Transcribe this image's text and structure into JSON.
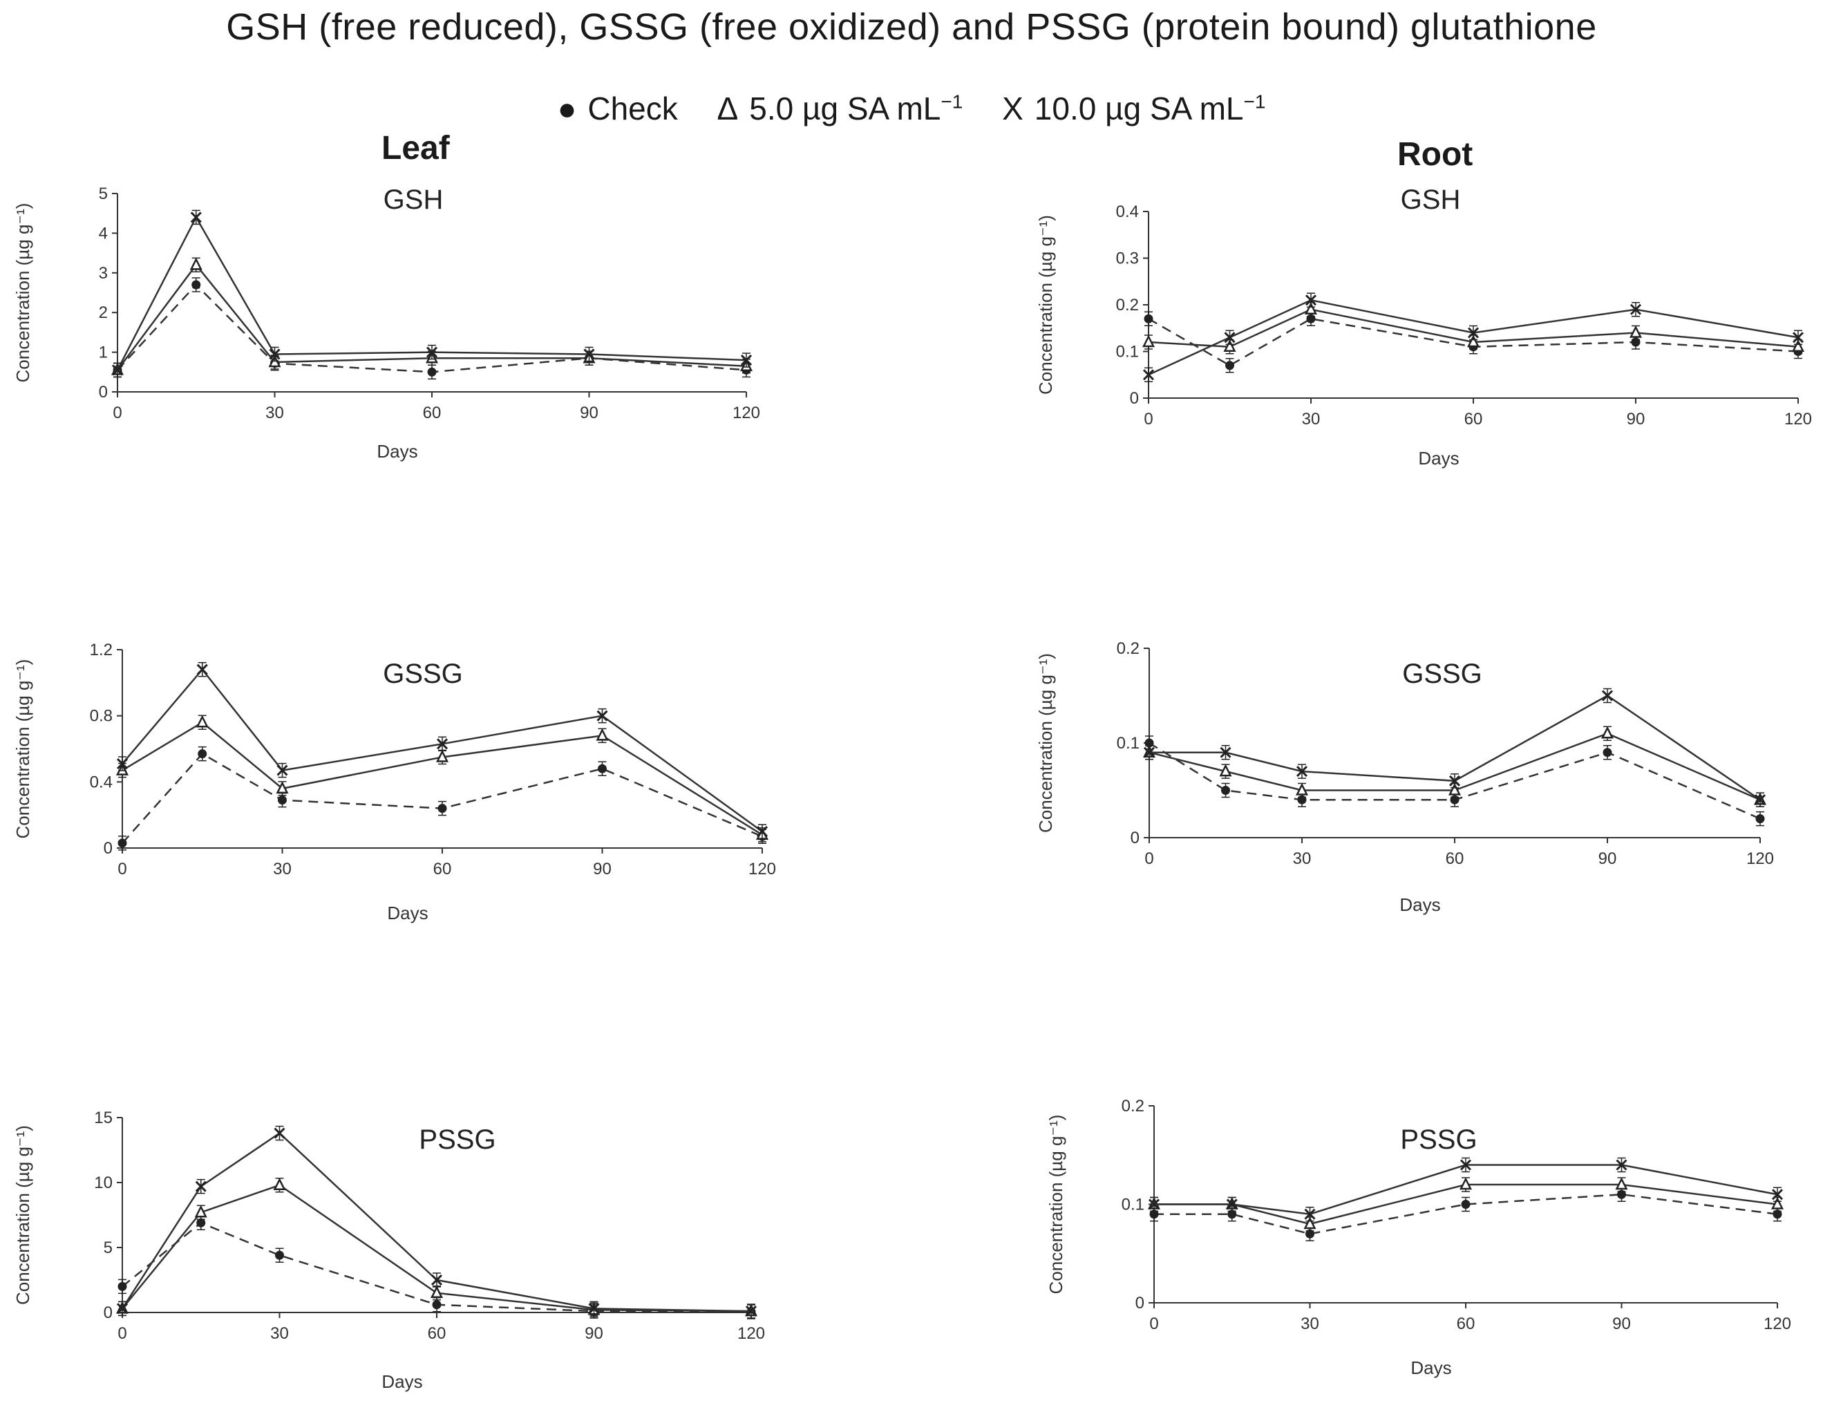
{
  "figure": {
    "title": "GSH (free reduced), GSSG (free oxidized) and PSSG (protein bound) glutathione",
    "legend": [
      {
        "symbol": "●",
        "label": "Check",
        "unit_sup": ""
      },
      {
        "symbol": "Δ",
        "label": "5.0 µg SA mL",
        "unit_sup": "−1"
      },
      {
        "symbol": "X",
        "label": "10.0 µg SA mL",
        "unit_sup": "−1"
      }
    ],
    "columns": {
      "leaf": "Leaf",
      "root": "Root"
    }
  },
  "colors": {
    "axis": "#333333",
    "line": "#333333",
    "marker": "#222222"
  },
  "chart_data": [
    {
      "type": "line",
      "id": "leaf-gsh",
      "title": "GSH",
      "xlabel": "Days",
      "ylabel": "Concentration (µg g⁻¹)",
      "xticks": [
        0,
        30,
        60,
        90,
        120
      ],
      "xlim": [
        0,
        120
      ],
      "yticks": [
        0,
        1,
        2,
        3,
        4,
        5
      ],
      "ytick_labels": [
        "0",
        "1",
        "2",
        "3",
        "4",
        "5"
      ],
      "ylim": [
        0,
        5
      ],
      "x": [
        0,
        15,
        30,
        60,
        90,
        120
      ],
      "series": [
        {
          "name": "Check",
          "marker": "circle",
          "dash": true,
          "values": [
            0.55,
            2.7,
            0.72,
            0.5,
            0.85,
            0.55
          ]
        },
        {
          "name": "5.0 µg SA mL⁻¹",
          "marker": "triangle",
          "dash": false,
          "values": [
            0.55,
            3.2,
            0.75,
            0.85,
            0.85,
            0.65
          ]
        },
        {
          "name": "10.0 µg SA mL⁻¹",
          "marker": "x",
          "dash": false,
          "values": [
            0.55,
            4.4,
            0.95,
            1.0,
            0.95,
            0.8
          ]
        }
      ]
    },
    {
      "type": "line",
      "id": "root-gsh",
      "title": "GSH",
      "xlabel": "Days",
      "ylabel": "Concentration (µg g⁻¹)",
      "xticks": [
        0,
        30,
        60,
        90,
        120
      ],
      "xlim": [
        0,
        120
      ],
      "yticks": [
        0,
        0.1,
        0.2,
        0.3,
        0.4
      ],
      "ytick_labels": [
        "0",
        "0.1",
        "0.2",
        "0.3",
        "0.4"
      ],
      "ylim": [
        0,
        0.4
      ],
      "x": [
        0,
        15,
        30,
        60,
        90,
        120
      ],
      "series": [
        {
          "name": "Check",
          "marker": "circle",
          "dash": true,
          "values": [
            0.17,
            0.07,
            0.17,
            0.11,
            0.12,
            0.1
          ]
        },
        {
          "name": "5.0 µg SA mL⁻¹",
          "marker": "triangle",
          "dash": false,
          "values": [
            0.12,
            0.11,
            0.19,
            0.12,
            0.14,
            0.11
          ]
        },
        {
          "name": "10.0 µg SA mL⁻¹",
          "marker": "x",
          "dash": false,
          "values": [
            0.05,
            0.13,
            0.21,
            0.14,
            0.19,
            0.13
          ]
        }
      ]
    },
    {
      "type": "line",
      "id": "leaf-gssg",
      "title": "GSSG",
      "xlabel": "Days",
      "ylabel": "Concentration (µg g⁻¹)",
      "xticks": [
        0,
        30,
        60,
        90,
        120
      ],
      "xlim": [
        0,
        120
      ],
      "yticks": [
        0,
        0.4,
        0.8,
        1.2
      ],
      "ytick_labels": [
        "0",
        "0.4",
        "0.8",
        "1.2"
      ],
      "ylim": [
        0,
        1.2
      ],
      "x": [
        0,
        15,
        30,
        60,
        90,
        120
      ],
      "series": [
        {
          "name": "Check",
          "marker": "circle",
          "dash": true,
          "values": [
            0.03,
            0.57,
            0.29,
            0.24,
            0.48,
            0.07
          ]
        },
        {
          "name": "5.0 µg SA mL⁻¹",
          "marker": "triangle",
          "dash": false,
          "values": [
            0.47,
            0.76,
            0.36,
            0.55,
            0.68,
            0.08
          ]
        },
        {
          "name": "10.0 µg SA mL⁻¹",
          "marker": "x",
          "dash": false,
          "values": [
            0.51,
            1.08,
            0.47,
            0.63,
            0.8,
            0.1
          ]
        }
      ]
    },
    {
      "type": "line",
      "id": "root-gssg",
      "title": "GSSG",
      "xlabel": "Days",
      "ylabel": "Concentration (µg g⁻¹)",
      "xticks": [
        0,
        30,
        60,
        90,
        120
      ],
      "xlim": [
        0,
        120
      ],
      "yticks": [
        0,
        0.1,
        0.2
      ],
      "ytick_labels": [
        "0",
        "0.1",
        "0.2"
      ],
      "ylim": [
        0,
        0.2
      ],
      "x": [
        0,
        15,
        30,
        60,
        90,
        120
      ],
      "series": [
        {
          "name": "Check",
          "marker": "circle",
          "dash": true,
          "values": [
            0.1,
            0.05,
            0.04,
            0.04,
            0.09,
            0.02
          ]
        },
        {
          "name": "5.0 µg SA mL⁻¹",
          "marker": "triangle",
          "dash": false,
          "values": [
            0.09,
            0.07,
            0.05,
            0.05,
            0.11,
            0.04
          ]
        },
        {
          "name": "10.0 µg SA mL⁻¹",
          "marker": "x",
          "dash": false,
          "values": [
            0.09,
            0.09,
            0.07,
            0.06,
            0.15,
            0.04
          ]
        }
      ]
    },
    {
      "type": "line",
      "id": "leaf-pssg",
      "title": "PSSG",
      "xlabel": "Days",
      "ylabel": "Concentration (µg g⁻¹)",
      "xticks": [
        0,
        30,
        60,
        90,
        120
      ],
      "xlim": [
        0,
        120
      ],
      "yticks": [
        0,
        5,
        10,
        15
      ],
      "ytick_labels": [
        "0",
        "5",
        "10",
        "15"
      ],
      "ylim": [
        0,
        15
      ],
      "x": [
        0,
        15,
        30,
        60,
        90,
        120
      ],
      "series": [
        {
          "name": "Check",
          "marker": "circle",
          "dash": true,
          "values": [
            2.0,
            6.9,
            4.4,
            0.6,
            0.1,
            0.05
          ]
        },
        {
          "name": "5.0 µg SA mL⁻¹",
          "marker": "triangle",
          "dash": false,
          "values": [
            0.3,
            7.7,
            9.8,
            1.5,
            0.2,
            0.1
          ]
        },
        {
          "name": "10.0 µg SA mL⁻¹",
          "marker": "x",
          "dash": false,
          "values": [
            0.3,
            9.7,
            13.8,
            2.5,
            0.3,
            0.1
          ]
        }
      ]
    },
    {
      "type": "line",
      "id": "root-pssg",
      "title": "PSSG",
      "xlabel": "Days",
      "ylabel": "Concentration (µg g⁻¹)",
      "xticks": [
        0,
        30,
        60,
        90,
        120
      ],
      "xlim": [
        0,
        120
      ],
      "yticks": [
        0,
        0.1,
        0.2
      ],
      "ytick_labels": [
        "0",
        "0.1",
        "0.2"
      ],
      "ylim": [
        0,
        0.2
      ],
      "x": [
        0,
        15,
        30,
        60,
        90,
        120
      ],
      "series": [
        {
          "name": "Check",
          "marker": "circle",
          "dash": true,
          "values": [
            0.09,
            0.09,
            0.07,
            0.1,
            0.11,
            0.09
          ]
        },
        {
          "name": "5.0 µg SA mL⁻¹",
          "marker": "triangle",
          "dash": false,
          "values": [
            0.1,
            0.1,
            0.08,
            0.12,
            0.12,
            0.1
          ]
        },
        {
          "name": "10.0 µg SA mL⁻¹",
          "marker": "x",
          "dash": false,
          "values": [
            0.1,
            0.1,
            0.09,
            0.14,
            0.14,
            0.11
          ]
        }
      ]
    }
  ]
}
